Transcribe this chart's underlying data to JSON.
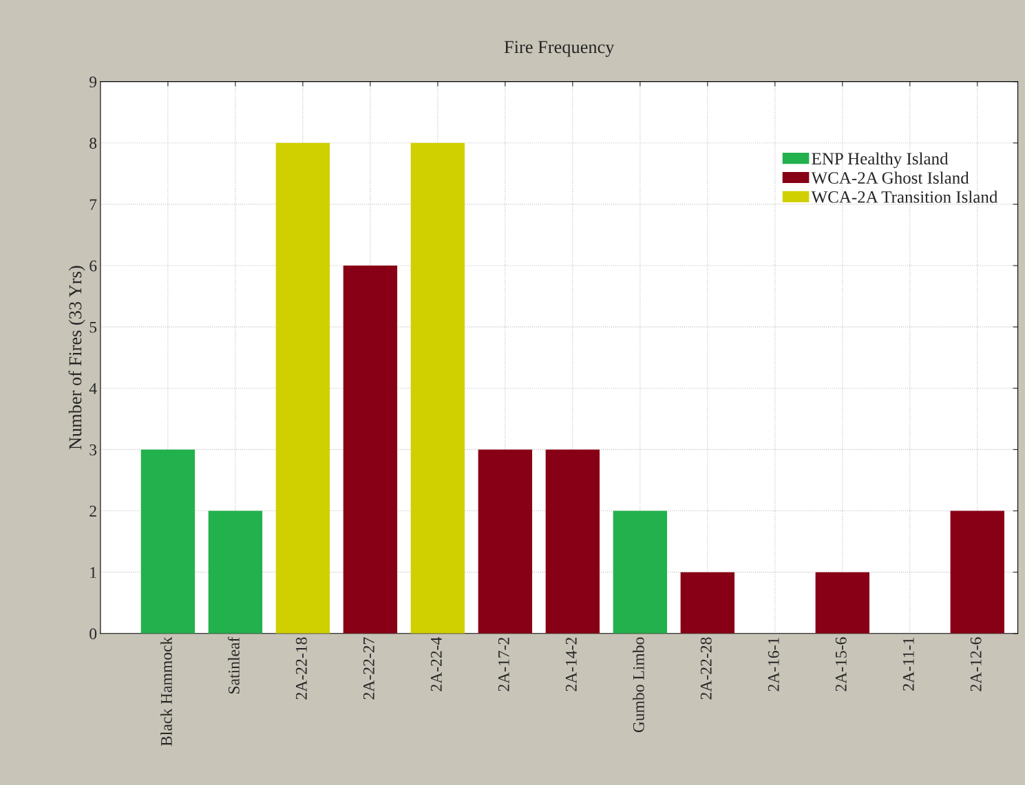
{
  "chart_data": {
    "type": "bar",
    "title": "Fire Frequency",
    "ylabel": "Number of Fires (33 Yrs)",
    "categories": [
      "Black Hammock",
      "Satinleaf",
      "2A-22-18",
      "2A-22-27",
      "2A-22-4",
      "2A-17-2",
      "2A-14-2",
      "Gumbo Limbo",
      "2A-22-28",
      "2A-16-1",
      "2A-15-6",
      "2A-11-1",
      "2A-12-6"
    ],
    "series": [
      {
        "name": "ENP Healthy Island",
        "color": "#22b14c",
        "values": [
          3,
          2,
          null,
          null,
          null,
          null,
          null,
          2,
          null,
          null,
          null,
          null,
          null
        ]
      },
      {
        "name": "WCA-2A Ghost Island",
        "color": "#880015",
        "values": [
          null,
          null,
          null,
          6,
          null,
          3,
          3,
          null,
          1,
          null,
          1,
          null,
          2
        ]
      },
      {
        "name": "WCA-2A Transition Island",
        "color": "#d0d000",
        "values": [
          null,
          null,
          8,
          null,
          8,
          null,
          null,
          null,
          null,
          null,
          null,
          null,
          null
        ]
      }
    ],
    "ylim": [
      0,
      9
    ],
    "yticks": [
      0,
      1,
      2,
      3,
      4,
      5,
      6,
      7,
      8,
      9
    ],
    "grid": true,
    "legend": "top right"
  }
}
